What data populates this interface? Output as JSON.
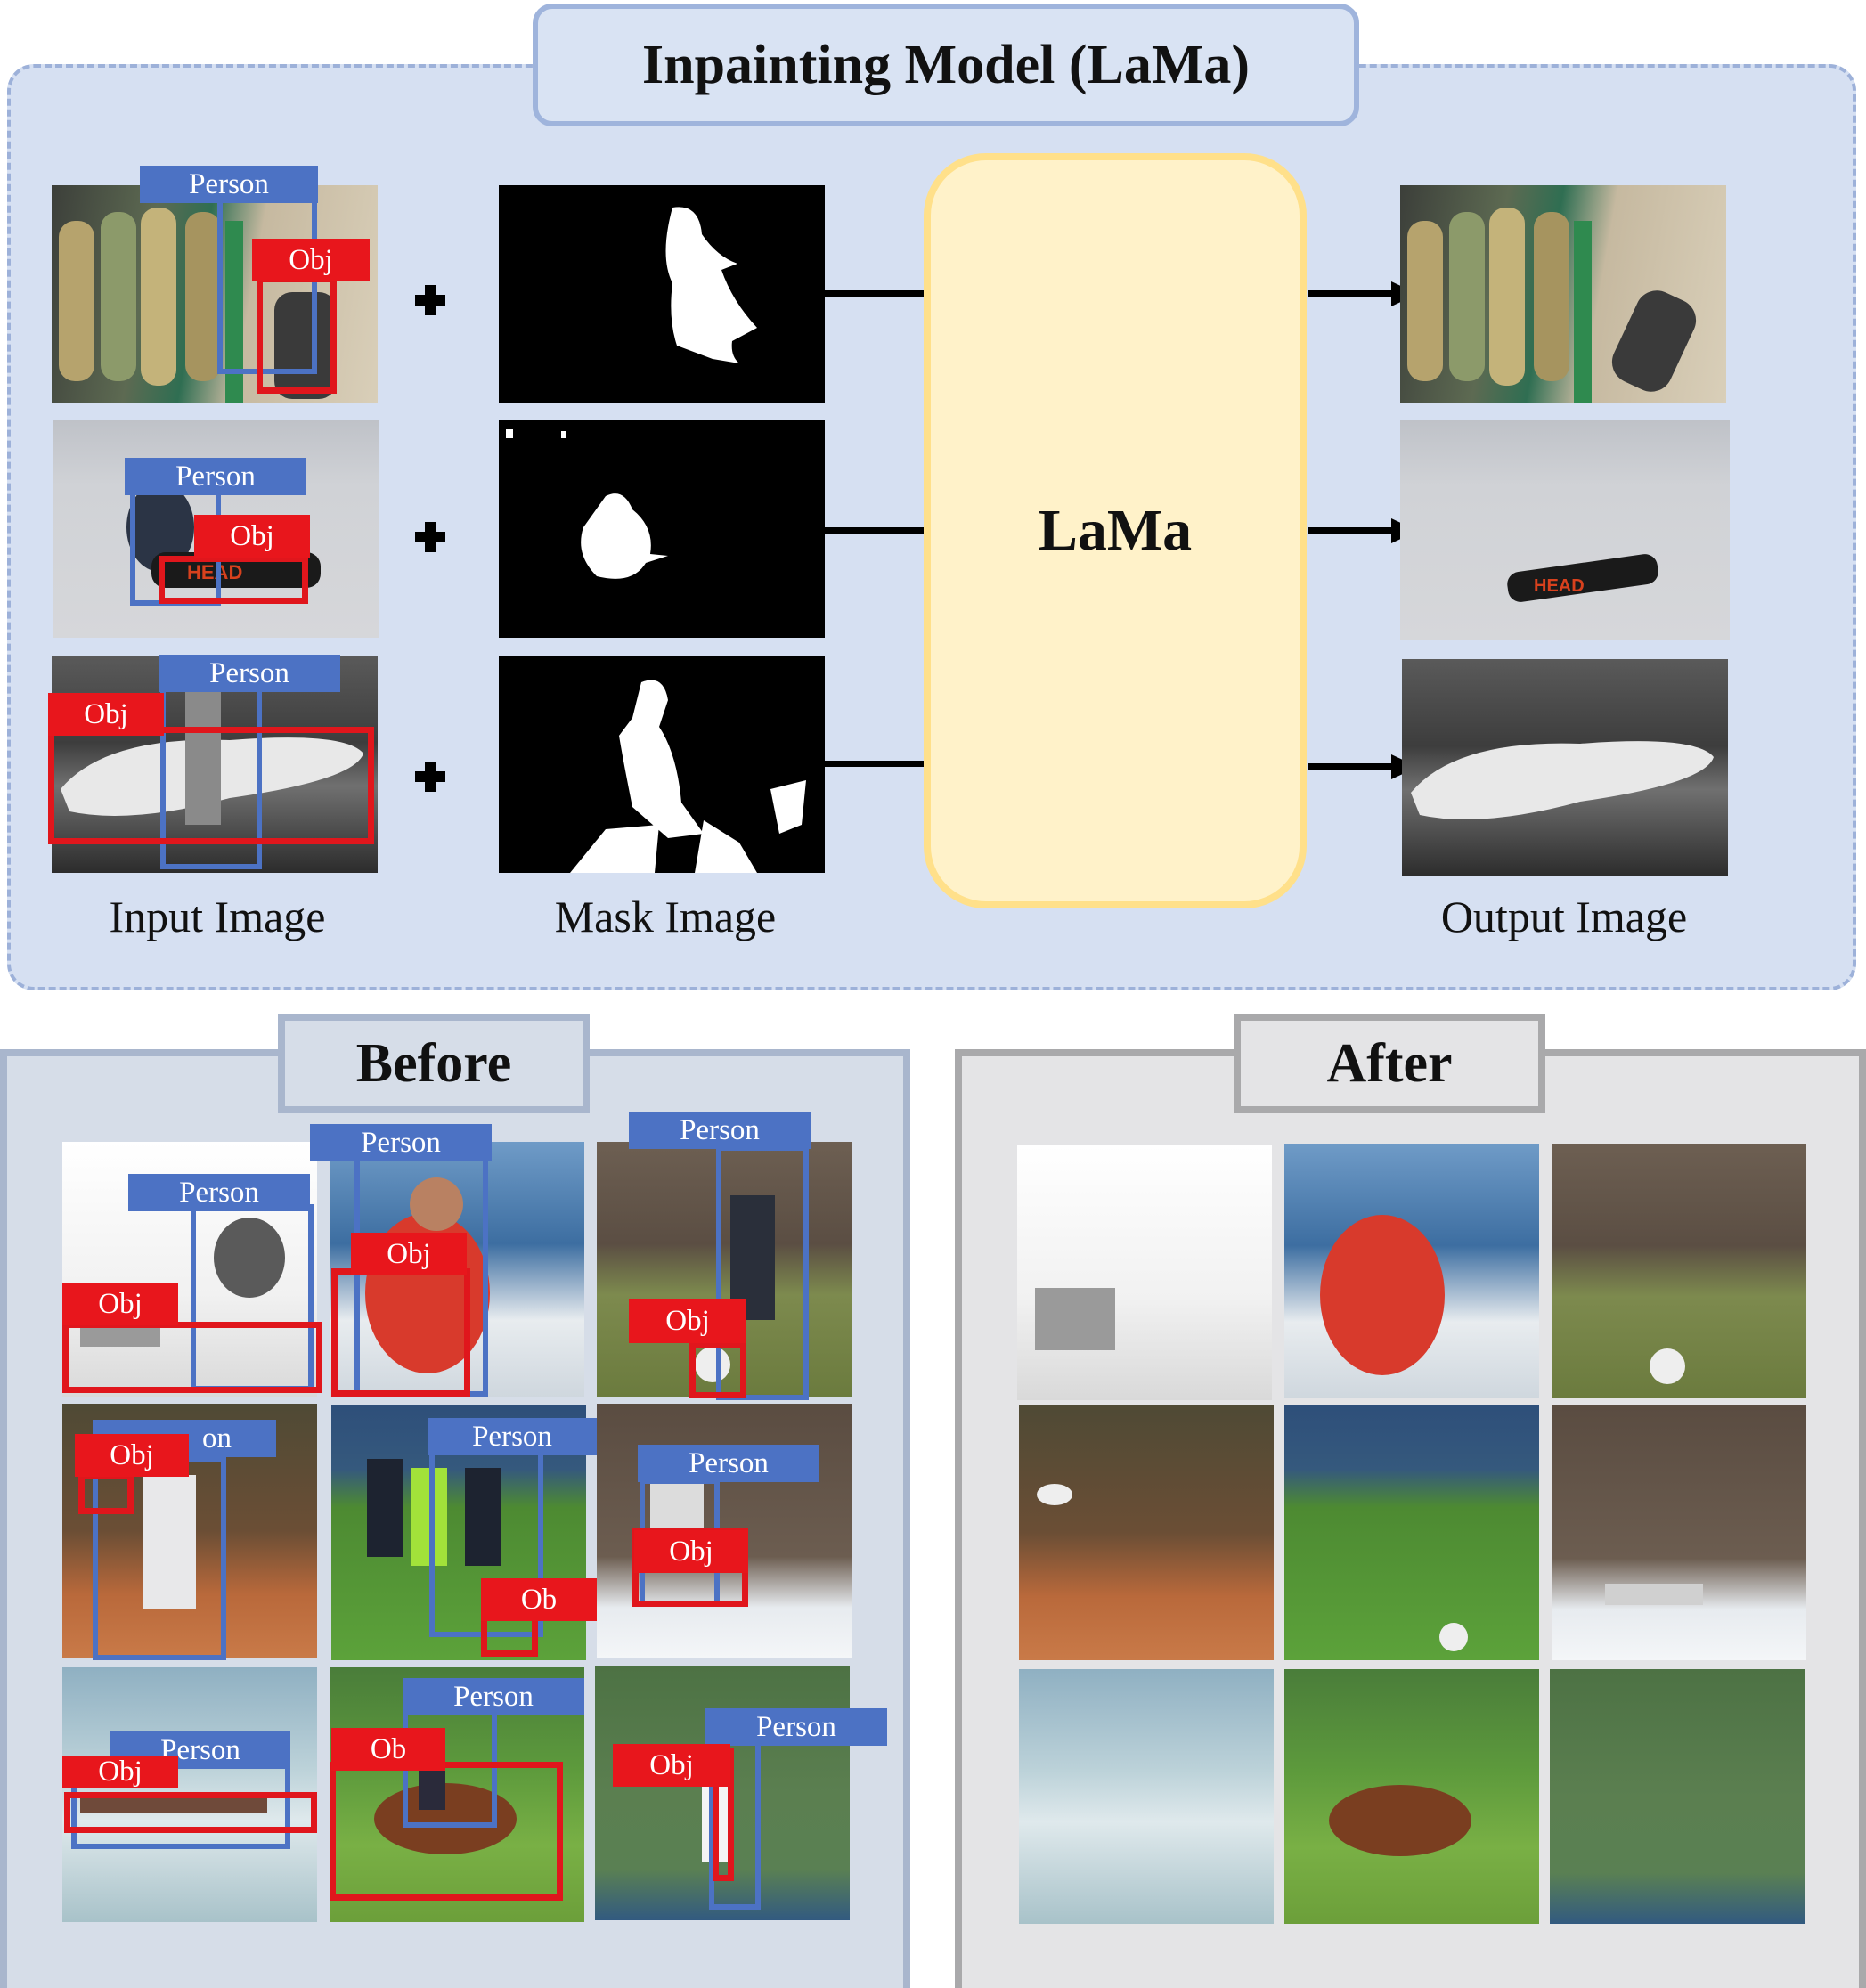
{
  "title": "Inpainting Model (LaMa)",
  "model_label": "LaMa",
  "captions": {
    "input": "Input Image",
    "mask": "Mask Image",
    "output": "Output Image"
  },
  "before_title": "Before",
  "after_title": "After",
  "labels": {
    "person": "Person",
    "obj": "Obj",
    "ob": "Ob",
    "on": "on"
  },
  "colors": {
    "panel_blue": "#d6e0f2",
    "lama_fill": "#fff2c9",
    "person_box": "#4c72c4",
    "obj_box": "#e0161c"
  }
}
